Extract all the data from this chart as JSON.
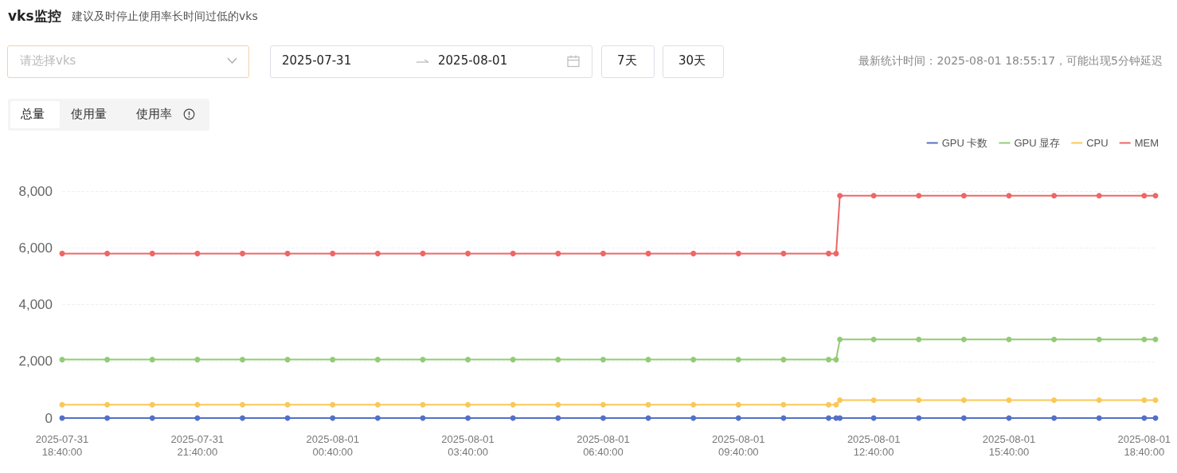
{
  "chart_data": {
    "type": "line",
    "title": "vks监控",
    "subtitle": "建议及时停止使用率长时间过低的vks",
    "annotations": [
      "请选择vks",
      "2025-07-31",
      "2025-08-01",
      "7天",
      "30天",
      "最新统计时间：2025-08-01 18:55:17，可能出现5分钟延迟",
      "总量",
      "使用量",
      "使用率"
    ],
    "x": [
      "2025-07-31T18:40",
      "2025-07-31T19:40",
      "2025-07-31T20:40",
      "2025-07-31T21:40",
      "2025-07-31T22:40",
      "2025-07-31T23:40",
      "2025-08-01T00:40",
      "2025-08-01T01:40",
      "2025-08-01T02:40",
      "2025-08-01T03:40",
      "2025-08-01T04:40",
      "2025-08-01T05:40",
      "2025-08-01T06:40",
      "2025-08-01T07:40",
      "2025-08-01T08:40",
      "2025-08-01T09:40",
      "2025-08-01T10:40",
      "2025-08-01T11:40",
      "2025-08-01T11:50",
      "2025-08-01T11:55",
      "2025-08-01T12:40",
      "2025-08-01T13:40",
      "2025-08-01T14:40",
      "2025-08-01T15:40",
      "2025-08-01T16:40",
      "2025-08-01T17:40",
      "2025-08-01T18:40",
      "2025-08-01T18:55"
    ],
    "series": [
      {
        "name": "GPU 卡数",
        "color": "#5470c6",
        "values": [
          0,
          0,
          0,
          0,
          0,
          0,
          0,
          0,
          0,
          0,
          0,
          0,
          0,
          0,
          0,
          0,
          0,
          0,
          0,
          0,
          0,
          0,
          0,
          0,
          0,
          0,
          0,
          0
        ]
      },
      {
        "name": "GPU 显存",
        "color": "#91cc75",
        "values": [
          2060,
          2060,
          2060,
          2060,
          2060,
          2060,
          2060,
          2060,
          2060,
          2060,
          2060,
          2060,
          2060,
          2060,
          2060,
          2060,
          2060,
          2060,
          2060,
          2770,
          2770,
          2770,
          2770,
          2770,
          2770,
          2770,
          2770,
          2770
        ]
      },
      {
        "name": "CPU",
        "color": "#fac858",
        "values": [
          470,
          470,
          470,
          470,
          470,
          470,
          470,
          470,
          470,
          470,
          470,
          470,
          470,
          470,
          470,
          470,
          470,
          470,
          470,
          630,
          630,
          630,
          630,
          630,
          630,
          630,
          630,
          630
        ]
      },
      {
        "name": "MEM",
        "color": "#ee6666",
        "values": [
          5800,
          5800,
          5800,
          5800,
          5800,
          5800,
          5800,
          5800,
          5800,
          5800,
          5800,
          5800,
          5800,
          5800,
          5800,
          5800,
          5800,
          5800,
          5800,
          7840,
          7840,
          7840,
          7840,
          7840,
          7840,
          7840,
          7840,
          7840
        ]
      }
    ],
    "xlim": [
      "2025-07-31T18:40",
      "2025-08-01T18:55"
    ],
    "xticks": [
      {
        "value": "2025-07-31T18:40",
        "label": "2025-07-31\n18:40:00"
      },
      {
        "value": "2025-07-31T21:40",
        "label": "2025-07-31\n21:40:00"
      },
      {
        "value": "2025-08-01T00:40",
        "label": "2025-08-01\n00:40:00"
      },
      {
        "value": "2025-08-01T03:40",
        "label": "2025-08-01\n03:40:00"
      },
      {
        "value": "2025-08-01T06:40",
        "label": "2025-08-01\n06:40:00"
      },
      {
        "value": "2025-08-01T09:40",
        "label": "2025-08-01\n09:40:00"
      },
      {
        "value": "2025-08-01T12:40",
        "label": "2025-08-01\n12:40:00"
      },
      {
        "value": "2025-08-01T15:40",
        "label": "2025-08-01\n15:40:00"
      },
      {
        "value": "2025-08-01T18:40",
        "label": "2025-08-01\n18:40:00"
      }
    ],
    "ylim": [
      0,
      8000
    ],
    "yticks": [
      {
        "value": 0,
        "label": "0"
      },
      {
        "value": 2000,
        "label": "2,000"
      },
      {
        "value": 4000,
        "label": "4,000"
      },
      {
        "value": 6000,
        "label": "6,000"
      },
      {
        "value": 8000,
        "label": "8,000"
      }
    ],
    "grid": "y",
    "legend": "top right",
    "marker": "circle",
    "line_style": "solid"
  }
}
